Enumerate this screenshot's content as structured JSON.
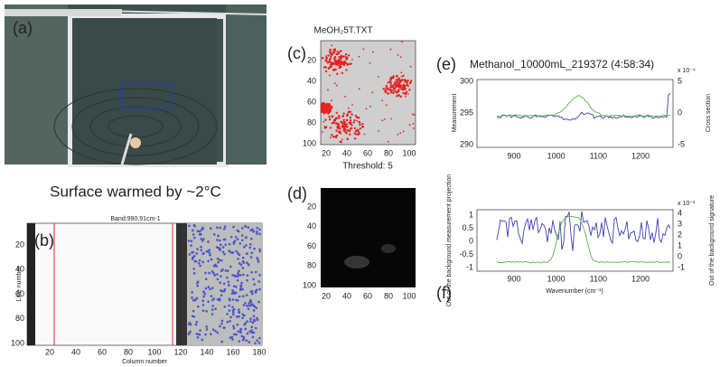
{
  "panel_a": {
    "label": "(a)"
  },
  "caption": "Surface warmed by ~2°C",
  "panel_b": {
    "label": "(b)",
    "title": "Band:990.91cm-1",
    "y_label": "Line number",
    "x_label": "Column number",
    "yticks": [
      "20",
      "40",
      "60",
      "80",
      "100"
    ],
    "xticks": [
      "20",
      "40",
      "60",
      "80",
      "100",
      "120",
      "140",
      "160",
      "180"
    ]
  },
  "panel_c": {
    "label": "(c)",
    "title": "MeOH₂5T.TXT",
    "yticks": [
      "20",
      "40",
      "60",
      "80",
      "100"
    ],
    "xticks": [
      "20",
      "40",
      "60",
      "80",
      "100"
    ],
    "note": "Threshold: 5"
  },
  "panel_d": {
    "label": "(d)",
    "yticks": [
      "20",
      "40",
      "60",
      "80",
      "100"
    ],
    "xticks": [
      "20",
      "40",
      "60",
      "80",
      "100"
    ]
  },
  "panel_e": {
    "label": "(e)",
    "title": "Methanol_10000mL_219372 (4:58:34)",
    "y_label": "Measurement",
    "y2_label": "Cross section",
    "yticks": [
      "300",
      "295",
      "290"
    ],
    "y2ticks": [
      "5",
      "0",
      "-5"
    ],
    "y2_scale": "x 10⁻⁴",
    "xticks": [
      "900",
      "1000",
      "1100",
      "1200"
    ]
  },
  "panel_f": {
    "label": "(f)",
    "y_label": "Out of the background measurement projection",
    "y2_label": "Out of the background signature",
    "yticks": [
      "1",
      "0.5",
      "0",
      "-0.5",
      "-1"
    ],
    "y2ticks": [
      "4",
      "3",
      "2",
      "1",
      "0",
      "-1"
    ],
    "y2_scale": "x 10⁻³",
    "xticks": [
      "900",
      "1000",
      "1100",
      "1200"
    ],
    "x_label": "Wavenumber (cm⁻¹)"
  }
}
